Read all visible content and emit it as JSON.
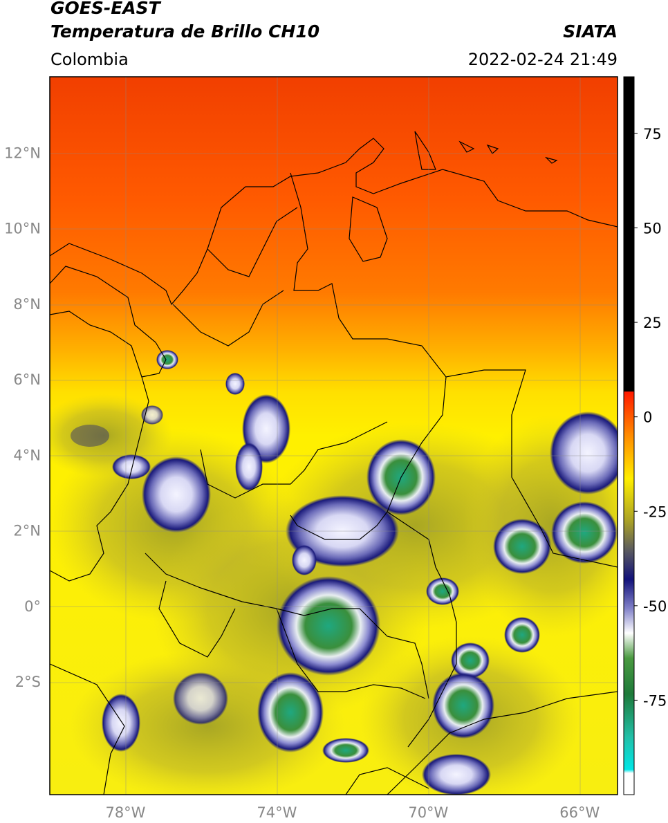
{
  "header": {
    "satellite": "GOES-EAST",
    "product": "Temperatura de Brillo CH10",
    "region": "Colombia",
    "agency": "SIATA",
    "datetime": "2022-02-24 21:49"
  },
  "map": {
    "lon_range": [
      -80,
      -65
    ],
    "lat_range": [
      -5,
      14
    ],
    "lon_ticks": [
      {
        "value": -78,
        "label": "78°W"
      },
      {
        "value": -74,
        "label": "74°W"
      },
      {
        "value": -70,
        "label": "70°W"
      },
      {
        "value": -66,
        "label": "66°W"
      }
    ],
    "lat_ticks": [
      {
        "value": 12,
        "label": "12°N"
      },
      {
        "value": 10,
        "label": "10°N"
      },
      {
        "value": 8,
        "label": "8°N"
      },
      {
        "value": 6,
        "label": "6°N"
      },
      {
        "value": 4,
        "label": "4°N"
      },
      {
        "value": 2,
        "label": "2°N"
      },
      {
        "value": 0,
        "label": "0°"
      },
      {
        "value": -2,
        "label": "2°S"
      }
    ]
  },
  "colorbar": {
    "range": [
      -100,
      90
    ],
    "ticks": [
      {
        "value": 75,
        "label": "75"
      },
      {
        "value": 50,
        "label": "50"
      },
      {
        "value": 25,
        "label": "25"
      },
      {
        "value": 0,
        "label": "0"
      },
      {
        "value": -25,
        "label": "-25"
      },
      {
        "value": -50,
        "label": "-50"
      },
      {
        "value": -75,
        "label": "-75"
      }
    ]
  },
  "colors": {
    "warm": "#ff4a00",
    "orange": "#ff8c00",
    "yellow": "#ffea00",
    "olive": "#b8b02a",
    "navy": "#1a1a7a",
    "cold_white": "#f4f4ff",
    "green": "#2f8a3a",
    "teal": "#22c8b0",
    "cyan": "#00e6e6",
    "black": "#000000"
  }
}
